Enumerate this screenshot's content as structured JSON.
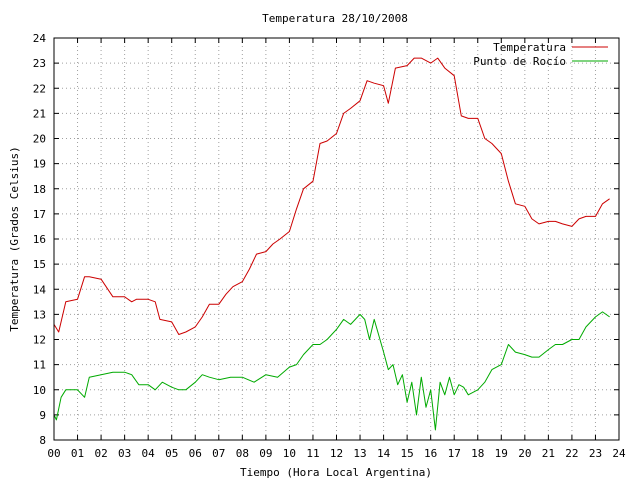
{
  "chart_data": {
    "type": "line",
    "title": "Temperatura 28/10/2008",
    "xlabel": "Tiempo (Hora Local Argentina)",
    "ylabel": "Temperatura (Grados Celsius)",
    "xlim": [
      0,
      24
    ],
    "ylim": [
      8,
      24
    ],
    "x_ticks": [
      "00",
      "01",
      "02",
      "03",
      "04",
      "05",
      "06",
      "07",
      "08",
      "09",
      "10",
      "11",
      "12",
      "13",
      "14",
      "15",
      "16",
      "17",
      "18",
      "19",
      "20",
      "21",
      "22",
      "23",
      "24"
    ],
    "y_ticks": [
      "8",
      "9",
      "10",
      "11",
      "12",
      "13",
      "14",
      "15",
      "16",
      "17",
      "18",
      "19",
      "20",
      "21",
      "22",
      "23",
      "24"
    ],
    "grid": true,
    "legend_position": "top-right",
    "series": [
      {
        "name": "Temperatura",
        "color": "#cc0000",
        "x": [
          0.0,
          0.2,
          0.5,
          1.0,
          1.3,
          1.5,
          2.0,
          2.5,
          3.0,
          3.3,
          3.5,
          4.0,
          4.3,
          4.5,
          5.0,
          5.3,
          5.6,
          6.0,
          6.3,
          6.6,
          7.0,
          7.3,
          7.6,
          8.0,
          8.3,
          8.6,
          9.0,
          9.3,
          9.6,
          10.0,
          10.3,
          10.6,
          11.0,
          11.3,
          11.6,
          12.0,
          12.3,
          12.6,
          13.0,
          13.3,
          13.6,
          14.0,
          14.2,
          14.5,
          15.0,
          15.3,
          15.6,
          16.0,
          16.3,
          16.6,
          17.0,
          17.3,
          17.6,
          18.0,
          18.3,
          18.6,
          19.0,
          19.3,
          19.6,
          20.0,
          20.3,
          20.6,
          21.0,
          21.3,
          21.6,
          22.0,
          22.3,
          22.6,
          23.0,
          23.3,
          23.6
        ],
        "y": [
          12.6,
          12.3,
          13.5,
          13.6,
          14.5,
          14.5,
          14.4,
          13.7,
          13.7,
          13.5,
          13.6,
          13.6,
          13.5,
          12.8,
          12.7,
          12.2,
          12.3,
          12.5,
          12.9,
          13.4,
          13.4,
          13.8,
          14.1,
          14.3,
          14.8,
          15.4,
          15.5,
          15.8,
          16.0,
          16.3,
          17.2,
          18.0,
          18.3,
          19.8,
          19.9,
          20.2,
          21.0,
          21.2,
          21.5,
          22.3,
          22.2,
          22.1,
          21.4,
          22.8,
          22.9,
          23.2,
          23.2,
          23.0,
          23.2,
          22.8,
          22.5,
          20.9,
          20.8,
          20.8,
          20.0,
          19.8,
          19.4,
          18.3,
          17.4,
          17.3,
          16.8,
          16.6,
          16.7,
          16.7,
          16.6,
          16.5,
          16.8,
          16.9,
          16.9,
          17.4,
          17.6
        ]
      },
      {
        "name": "Punto de Rocío",
        "color": "#00aa00",
        "x": [
          0.0,
          0.1,
          0.3,
          0.5,
          1.0,
          1.3,
          1.5,
          2.0,
          2.5,
          3.0,
          3.3,
          3.6,
          4.0,
          4.3,
          4.6,
          5.0,
          5.3,
          5.6,
          6.0,
          6.3,
          6.6,
          7.0,
          7.5,
          8.0,
          8.5,
          9.0,
          9.5,
          10.0,
          10.3,
          10.6,
          11.0,
          11.3,
          11.6,
          12.0,
          12.3,
          12.6,
          13.0,
          13.2,
          13.4,
          13.6,
          14.0,
          14.2,
          14.4,
          14.6,
          14.8,
          15.0,
          15.2,
          15.4,
          15.6,
          15.8,
          16.0,
          16.2,
          16.4,
          16.6,
          16.8,
          17.0,
          17.2,
          17.4,
          17.6,
          18.0,
          18.3,
          18.6,
          19.0,
          19.3,
          19.6,
          20.0,
          20.3,
          20.6,
          21.0,
          21.3,
          21.6,
          22.0,
          22.3,
          22.6,
          23.0,
          23.3,
          23.6
        ],
        "y": [
          9.0,
          8.8,
          9.7,
          10.0,
          10.0,
          9.7,
          10.5,
          10.6,
          10.7,
          10.7,
          10.6,
          10.2,
          10.2,
          10.0,
          10.3,
          10.1,
          10.0,
          10.0,
          10.3,
          10.6,
          10.5,
          10.4,
          10.5,
          10.5,
          10.3,
          10.6,
          10.5,
          10.9,
          11.0,
          11.4,
          11.8,
          11.8,
          12.0,
          12.4,
          12.8,
          12.6,
          13.0,
          12.8,
          12.0,
          12.8,
          11.5,
          10.8,
          11.0,
          10.2,
          10.6,
          9.5,
          10.3,
          9.0,
          10.5,
          9.3,
          10.0,
          8.4,
          10.3,
          9.8,
          10.5,
          9.8,
          10.2,
          10.1,
          9.8,
          10.0,
          10.3,
          10.8,
          11.0,
          11.8,
          11.5,
          11.4,
          11.3,
          11.3,
          11.6,
          11.8,
          11.8,
          12.0,
          12.0,
          12.5,
          12.9,
          13.1,
          12.9
        ]
      }
    ]
  }
}
